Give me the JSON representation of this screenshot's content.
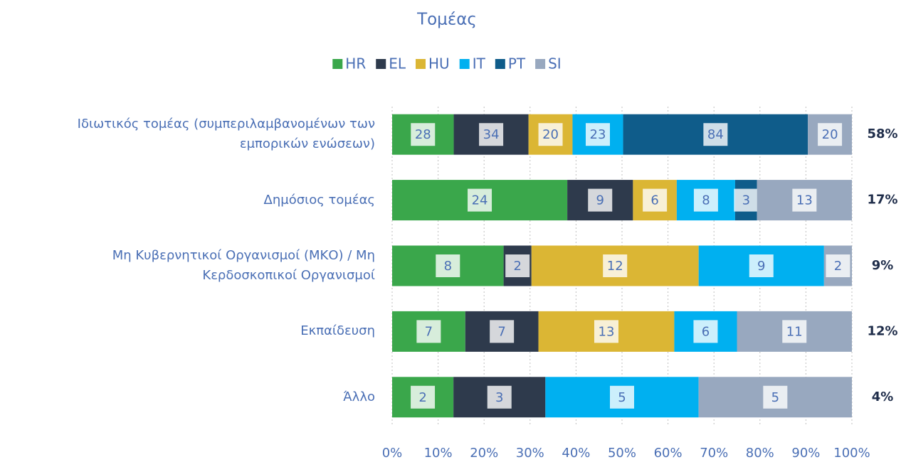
{
  "chart_data": {
    "type": "bar",
    "orientation": "horizontal",
    "stacking": "percent",
    "title": "Τομέας",
    "categories": [
      "Ιδιωτικός τομέας (συμπεριλαμβανομένων των εμπορικών ενώσεων)",
      "Δημόσιος τομέας",
      "Μη Κυβερνητικοί Οργανισμοί (ΜΚΟ) / Μη Κερδοσκοπικοί Οργανισμοί",
      "Εκπαίδευση",
      "Άλλο"
    ],
    "series": [
      {
        "name": "HR",
        "color": "#3aa74b",
        "values": [
          28,
          24,
          8,
          7,
          2
        ]
      },
      {
        "name": "EL",
        "color": "#2e3a4c",
        "values": [
          34,
          9,
          2,
          7,
          3
        ]
      },
      {
        "name": "HU",
        "color": "#dbb634",
        "values": [
          20,
          6,
          12,
          13,
          null
        ]
      },
      {
        "name": "IT",
        "color": "#00b0f0",
        "values": [
          23,
          8,
          9,
          6,
          5
        ]
      },
      {
        "name": "PT",
        "color": "#0f5c8a",
        "values": [
          84,
          3,
          null,
          null,
          null
        ]
      },
      {
        "name": "SI",
        "color": "#98a8bf",
        "values": [
          20,
          13,
          2,
          11,
          5
        ]
      }
    ],
    "row_shares": {
      "values": [
        58,
        17,
        9,
        12,
        4
      ],
      "value_labels": [
        "58%",
        "17%",
        "9%",
        "12%",
        "4%"
      ]
    },
    "xlim": [
      0,
      100
    ],
    "xticks": [
      {
        "value": 0,
        "label": "0%"
      },
      {
        "value": 10,
        "label": "10%"
      },
      {
        "value": 20,
        "label": "20%"
      },
      {
        "value": 30,
        "label": "30%"
      },
      {
        "value": 40,
        "label": "40%"
      },
      {
        "value": 50,
        "label": "50%"
      },
      {
        "value": 60,
        "label": "60%"
      },
      {
        "value": 70,
        "label": "70%"
      },
      {
        "value": 80,
        "label": "80%"
      },
      {
        "value": 90,
        "label": "90%"
      },
      {
        "value": 100,
        "label": "100%"
      }
    ],
    "grid": true,
    "legend": "top"
  }
}
